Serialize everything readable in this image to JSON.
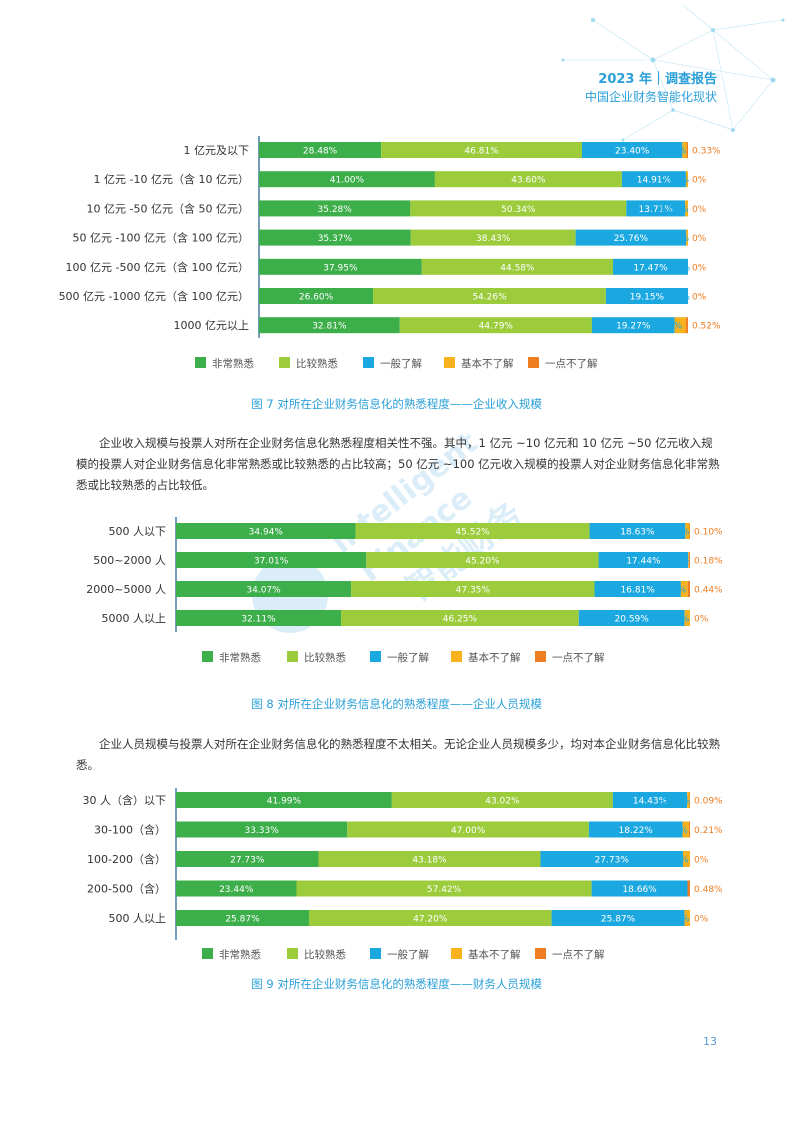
{
  "header": {
    "title": "2023 年｜调查报告",
    "subtitle": "中国企业财务智能化现状"
  },
  "watermark": {
    "line1": "Intelligent",
    "line2": "Finance",
    "line3": "智能财务"
  },
  "legend_labels": [
    "非常熟悉",
    "比较熟悉",
    "一般了解",
    "基本不了解",
    "一点不了解"
  ],
  "colors": [
    "#3cae4a",
    "#9ccc3c",
    "#1ba8e0",
    "#f7b21e",
    "#ef7d22"
  ],
  "captions": {
    "fig7": "图 7  对所在企业财务信息化的熟悉程度——企业收入规模",
    "fig8": "图 8  对所在企业财务信息化的熟悉程度——企业人员规模",
    "fig9": "图 9  对所在企业财务信息化的熟悉程度——财务人员规模"
  },
  "paragraphs": {
    "p1": "企业收入规模与投票人对所在企业财务信息化熟悉程度相关性不强。其中，1 亿元 ~10 亿元和 10 亿元 ~50 亿元收入规模的投票人对企业财务信息化非常熟悉或比较熟悉的占比较高；50 亿元 ~100 亿元收入规模的投票人对企业财务信息化非常熟悉或比较熟悉的占比较低。",
    "p2": "企业人员规模与投票人对所在企业财务信息化的熟悉程度不太相关。无论企业人员规模多少，均对本企业财务信息化比较熟悉。"
  },
  "page_number": "13",
  "chart_data": [
    {
      "type": "bar",
      "stacked": true,
      "orientation": "horizontal",
      "categories": [
        "1 亿元及以下",
        "1 亿元 -10 亿元（含 10 亿元）",
        "10 亿元 -50 亿元（含 50 亿元）",
        "50 亿元 -100 亿元（含 100 亿元）",
        "100 亿元 -500 亿元（含 100 亿元）",
        "500 亿元 -1000 亿元（含 100 亿元）",
        "1000 亿元以上"
      ],
      "series": [
        {
          "name": "非常熟悉",
          "values": [
            28.48,
            41.0,
            35.28,
            35.37,
            37.95,
            26.6,
            32.81
          ]
        },
        {
          "name": "比较熟悉",
          "values": [
            46.81,
            43.6,
            50.34,
            38.43,
            44.58,
            54.26,
            44.79
          ]
        },
        {
          "name": "一般了解",
          "values": [
            23.4,
            14.91,
            13.71,
            25.76,
            17.47,
            19.15,
            19.27
          ]
        },
        {
          "name": "基本不了解",
          "values": [
            0.98,
            0.49,
            0.67,
            0.44,
            0,
            0,
            2.6
          ]
        },
        {
          "name": "一点不了解",
          "values": [
            0.33,
            0,
            0,
            0,
            0,
            0,
            0.52
          ]
        }
      ],
      "labels": [
        [
          "28.48%",
          "46.81%",
          "23.40%",
          "0.98%",
          "0.33%"
        ],
        [
          "41.00%",
          "43.60%",
          "14.91%",
          "0.49%",
          "0%"
        ],
        [
          "35.28%",
          "50.34%",
          "13.71%",
          "0.67%",
          "0%"
        ],
        [
          "35.37%",
          "38.43%",
          "25.76%",
          "0.44%",
          "0%"
        ],
        [
          "37.95%",
          "44.58%",
          "17.47%",
          "0%",
          "0%"
        ],
        [
          "26.60%",
          "54.26%",
          "19.15%",
          "0%",
          "0%"
        ],
        [
          "32.81%",
          "44.79%",
          "19.27%",
          "2.60%",
          "0.52%"
        ]
      ],
      "xlim": [
        0,
        100
      ],
      "legend": "bottom"
    },
    {
      "type": "bar",
      "stacked": true,
      "orientation": "horizontal",
      "categories": [
        "500 人以下",
        "500~2000 人",
        "2000~5000 人",
        "5000 人以上"
      ],
      "series": [
        {
          "name": "非常熟悉",
          "values": [
            34.94,
            37.01,
            34.07,
            32.11
          ]
        },
        {
          "name": "比较熟悉",
          "values": [
            45.52,
            45.2,
            47.35,
            46.25
          ]
        },
        {
          "name": "一般了解",
          "values": [
            18.63,
            17.44,
            16.81,
            20.59
          ]
        },
        {
          "name": "基本不了解",
          "values": [
            0.81,
            0.18,
            1.33,
            1.05
          ]
        },
        {
          "name": "一点不了解",
          "values": [
            0.1,
            0.18,
            0.44,
            0
          ]
        }
      ],
      "labels": [
        [
          "34.94%",
          "45.52%",
          "18.63%",
          "0.81%",
          "0.10%"
        ],
        [
          "37.01%",
          "45.20%",
          "17.44%",
          "0.18%",
          "0.18%"
        ],
        [
          "34.07%",
          "47.35%",
          "16.81%",
          "1.33%",
          "0.44%"
        ],
        [
          "32.11%",
          "46.25%",
          "20.59%",
          "1.05%",
          "0%"
        ]
      ],
      "xlim": [
        0,
        100
      ],
      "legend": "bottom"
    },
    {
      "type": "bar",
      "stacked": true,
      "orientation": "horizontal",
      "categories": [
        "30 人（含）以下",
        "30-100（含）",
        "100-200（含）",
        "200-500（含）",
        "500 人以上"
      ],
      "series": [
        {
          "name": "非常熟悉",
          "values": [
            41.99,
            33.33,
            27.73,
            23.44,
            25.87
          ]
        },
        {
          "name": "比较熟悉",
          "values": [
            43.02,
            47.0,
            43.18,
            57.42,
            47.2
          ]
        },
        {
          "name": "一般了解",
          "values": [
            14.43,
            18.22,
            27.73,
            18.66,
            25.87
          ]
        },
        {
          "name": "基本不了解",
          "values": [
            0.47,
            1.24,
            1.36,
            0,
            1.07
          ]
        },
        {
          "name": "一点不了解",
          "values": [
            0.09,
            0.21,
            0,
            0.48,
            0
          ]
        }
      ],
      "labels": [
        [
          "41.99%",
          "43.02%",
          "14.43%",
          "0.47%",
          "0.09%"
        ],
        [
          "33.33%",
          "47.00%",
          "18.22%",
          "1.24%",
          "0.21%"
        ],
        [
          "27.73%",
          "43.18%",
          "27.73%",
          "1.36%",
          "0%"
        ],
        [
          "23.44%",
          "57.42%",
          "18.66%",
          "0%",
          "0.48%"
        ],
        [
          "25.87%",
          "47.20%",
          "25.87%",
          "1.07%",
          "0%"
        ]
      ],
      "xlim": [
        0,
        100
      ],
      "legend": "bottom"
    }
  ]
}
